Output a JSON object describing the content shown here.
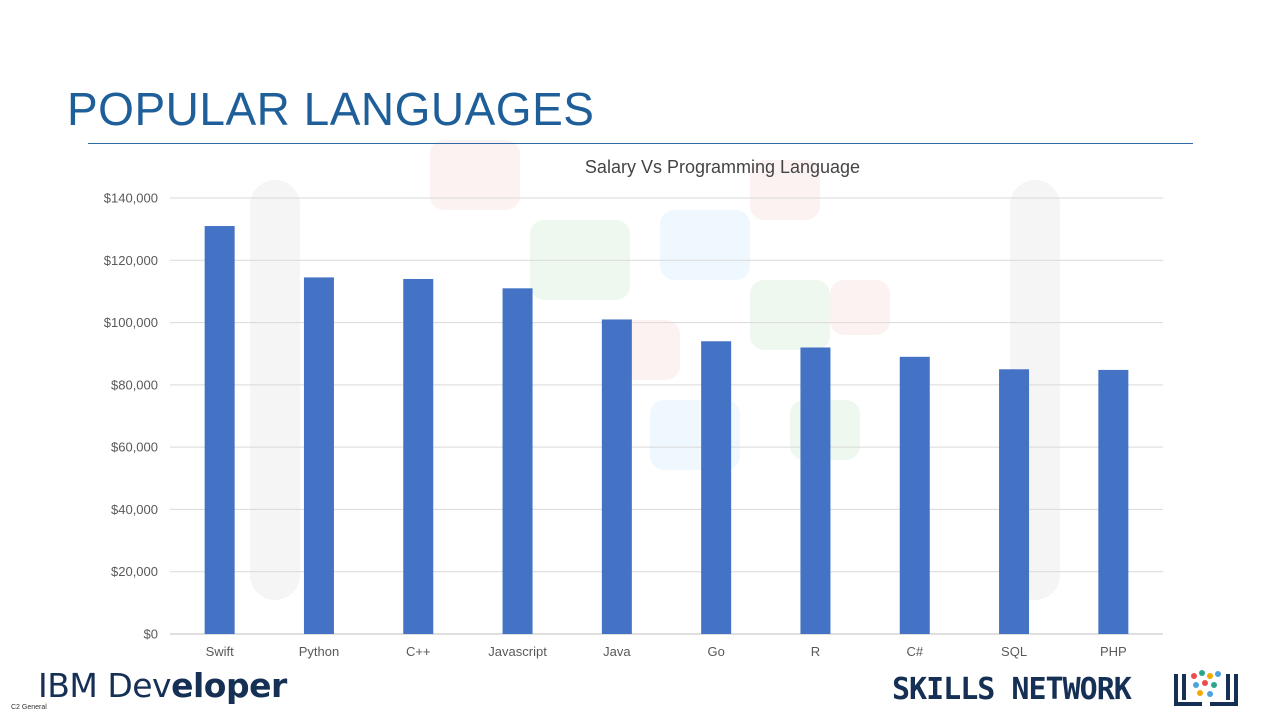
{
  "slide": {
    "title": "POPULAR LANGUAGES",
    "footer_left_logo": {
      "part1": "IBM Dev",
      "part2": "eloper"
    },
    "footer_right_logo": "SKILLS NETWORK",
    "classification": "C2 General"
  },
  "colors": {
    "bar": "#4472c4",
    "title": "#1f5f99",
    "grid": "#d9d9d9",
    "axis_text": "#595959"
  },
  "chart_data": {
    "type": "bar",
    "title": "Salary Vs Programming Language",
    "xlabel": "",
    "ylabel": "",
    "categories": [
      "Swift",
      "Python",
      "C++",
      "Javascript",
      "Java",
      "Go",
      "R",
      "C#",
      "SQL",
      "PHP"
    ],
    "values": [
      131000,
      114500,
      114000,
      111000,
      101000,
      94000,
      92000,
      89000,
      85000,
      84800
    ],
    "ylim": [
      0,
      140000
    ],
    "yticks": [
      0,
      20000,
      40000,
      60000,
      80000,
      100000,
      120000,
      140000
    ],
    "ytick_labels": [
      "$0",
      "$20,000",
      "$40,000",
      "$60,000",
      "$80,000",
      "$100,000",
      "$120,000",
      "$140,000"
    ],
    "grid": true,
    "legend": "none"
  }
}
